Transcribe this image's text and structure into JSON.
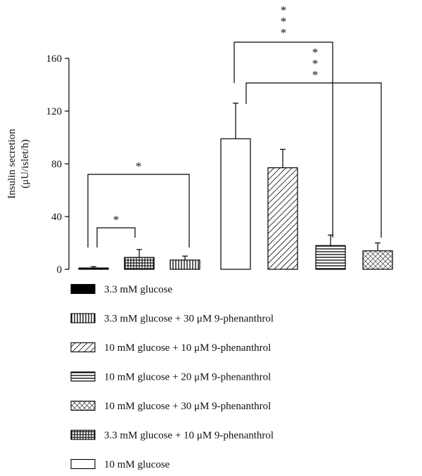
{
  "chart_data": {
    "type": "bar",
    "ylabel_line1": "Insulin secretion",
    "ylabel_line2": "(μU/islet/h)",
    "ylim": [
      0,
      160
    ],
    "yticks": [
      "0",
      "40",
      "80",
      "120",
      "160"
    ],
    "grid": false,
    "legend_position": "bottom",
    "bars": [
      {
        "series": "3.3 mM glucose",
        "pattern": "solid",
        "value": 1,
        "error": 1
      },
      {
        "series": "3.3 mM glucose + 10 μM 9-phenanthrol",
        "pattern": "grid",
        "value": 9,
        "error": 6
      },
      {
        "series": "3.3 mM glucose + 30 μM 9-phenanthrol",
        "pattern": "vertical",
        "value": 7,
        "error": 3
      },
      {
        "series": "10 mM glucose",
        "pattern": "open",
        "value": 99,
        "error": 27
      },
      {
        "series": "10 mM glucose + 10 μM 9-phenanthrol",
        "pattern": "diagonal",
        "value": 77,
        "error": 14
      },
      {
        "series": "10 mM glucose + 20 μM 9-phenanthrol",
        "pattern": "horizontal",
        "value": 18,
        "error": 8
      },
      {
        "series": "10 mM glucose + 30 μM 9-phenanthrol",
        "pattern": "crosshatch",
        "value": 14,
        "error": 6
      }
    ],
    "significance": [
      {
        "label": "*",
        "from_bar": 0,
        "to_bar": 1
      },
      {
        "label": "*",
        "from_bar": 0,
        "to_bar": 2
      },
      {
        "label": "* * *",
        "from_bar": 3,
        "to_bar": 5
      },
      {
        "label": "* * *",
        "from_bar": 3,
        "to_bar": 6
      }
    ],
    "legend": [
      {
        "label": "3.3 mM glucose",
        "pattern": "solid"
      },
      {
        "label": "3.3 mM glucose + 30 μM 9-phenanthrol",
        "pattern": "vertical"
      },
      {
        "label": "10 mM glucose + 10 μM 9-phenanthrol",
        "pattern": "diagonal"
      },
      {
        "label": "10 mM glucose + 20 μM 9-phenanthrol",
        "pattern": "horizontal"
      },
      {
        "label": "10 mM glucose + 30 μM 9-phenanthrol",
        "pattern": "crosshatch"
      },
      {
        "label": "3.3 mM glucose + 10 μM 9-phenanthrol",
        "pattern": "grid"
      },
      {
        "label": "10 mM glucose",
        "pattern": "open"
      }
    ]
  }
}
